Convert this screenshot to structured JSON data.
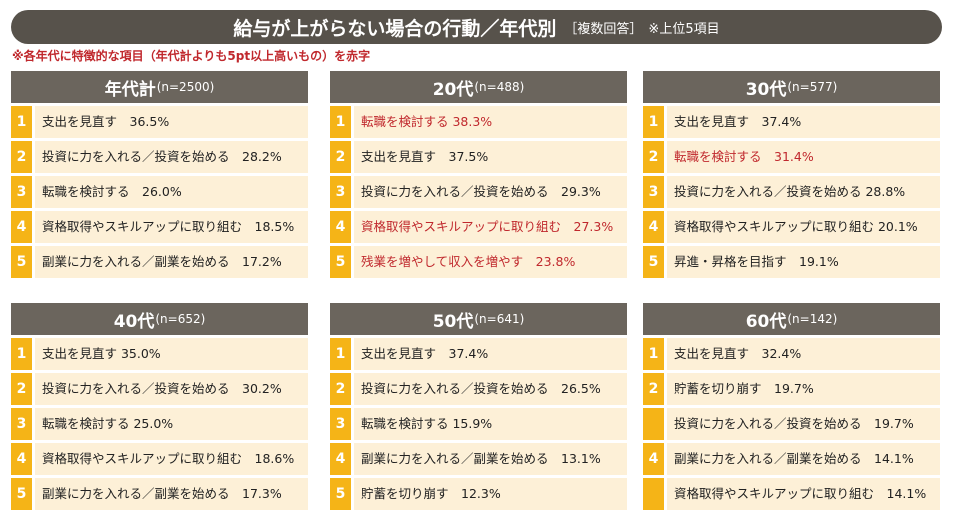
{
  "header": {
    "title": "給与が上がらない場合の行動／年代別",
    "tag": "［複数回答］",
    "note": "※上位5項目",
    "subnote": "※各年代に特徴的な項目（年代計よりも5pt以上高いもの）を赤字"
  },
  "colors": {
    "title_bg": "#57524b",
    "panel_header_bg": "#6b655d",
    "rank_bg": "#f5b417",
    "item_bg": "#fdf0d7",
    "highlight_text": "#c0282d"
  },
  "panels": [
    {
      "age": "年代計",
      "n": "(n=2500)",
      "items": [
        {
          "rank": "1",
          "text": "支出を見直す　36.5%",
          "highlight": false
        },
        {
          "rank": "2",
          "text": "投資に力を入れる／投資を始める　28.2%",
          "highlight": false
        },
        {
          "rank": "3",
          "text": "転職を検討する　26.0%",
          "highlight": false
        },
        {
          "rank": "4",
          "text": "資格取得やスキルアップに取り組む　18.5%",
          "highlight": false
        },
        {
          "rank": "5",
          "text": "副業に力を入れる／副業を始める　17.2%",
          "highlight": false
        }
      ]
    },
    {
      "age": "20代",
      "n": "(n=488)",
      "items": [
        {
          "rank": "1",
          "text": "転職を検討する 38.3%",
          "highlight": true
        },
        {
          "rank": "2",
          "text": "支出を見直す　37.5%",
          "highlight": false
        },
        {
          "rank": "3",
          "text": "投資に力を入れる／投資を始める　29.3%",
          "highlight": false
        },
        {
          "rank": "4",
          "text": "資格取得やスキルアップに取り組む　27.3%",
          "highlight": true
        },
        {
          "rank": "5",
          "text": "残業を増やして収入を増やす　23.8%",
          "highlight": true
        }
      ]
    },
    {
      "age": "30代",
      "n": "(n=577)",
      "items": [
        {
          "rank": "1",
          "text": "支出を見直す　37.4%",
          "highlight": false
        },
        {
          "rank": "2",
          "text": "転職を検討する　31.4%",
          "highlight": true
        },
        {
          "rank": "3",
          "text": "投資に力を入れる／投資を始める 28.8%",
          "highlight": false
        },
        {
          "rank": "4",
          "text": "資格取得やスキルアップに取り組む 20.1%",
          "highlight": false,
          "wrap": true
        },
        {
          "rank": "5",
          "text": "昇進・昇格を目指す　19.1%",
          "highlight": false
        }
      ]
    },
    {
      "age": "40代",
      "n": "(n=652)",
      "items": [
        {
          "rank": "1",
          "text": "支出を見直す 35.0%",
          "highlight": false
        },
        {
          "rank": "2",
          "text": "投資に力を入れる／投資を始める　30.2%",
          "highlight": false
        },
        {
          "rank": "3",
          "text": "転職を検討する 25.0%",
          "highlight": false
        },
        {
          "rank": "4",
          "text": "資格取得やスキルアップに取り組む　18.6%",
          "highlight": false
        },
        {
          "rank": "5",
          "text": "副業に力を入れる／副業を始める　17.3%",
          "highlight": false
        }
      ]
    },
    {
      "age": "50代",
      "n": "(n=641)",
      "items": [
        {
          "rank": "1",
          "text": "支出を見直す　37.4%",
          "highlight": false
        },
        {
          "rank": "2",
          "text": "投資に力を入れる／投資を始める　26.5%",
          "highlight": false
        },
        {
          "rank": "3",
          "text": "転職を検討する 15.9%",
          "highlight": false
        },
        {
          "rank": "4",
          "text": "副業に力を入れる／副業を始める　13.1%",
          "highlight": false
        },
        {
          "rank": "5",
          "text": "貯蓄を切り崩す　12.3%",
          "highlight": false
        }
      ]
    },
    {
      "age": "60代",
      "n": "(n=142)",
      "items": [
        {
          "rank": "1",
          "text": "支出を見直す　32.4%",
          "highlight": false
        },
        {
          "rank": "2",
          "text": "貯蓄を切り崩す　19.7%",
          "highlight": false
        },
        {
          "rank": "",
          "text": "投資に力を入れる／投資を始める　19.7%",
          "highlight": false
        },
        {
          "rank": "4",
          "text": "副業に力を入れる／副業を始める　14.1%",
          "highlight": false
        },
        {
          "rank": "",
          "text": "資格取得やスキルアップに取り組む　14.1%",
          "highlight": false
        }
      ]
    }
  ]
}
